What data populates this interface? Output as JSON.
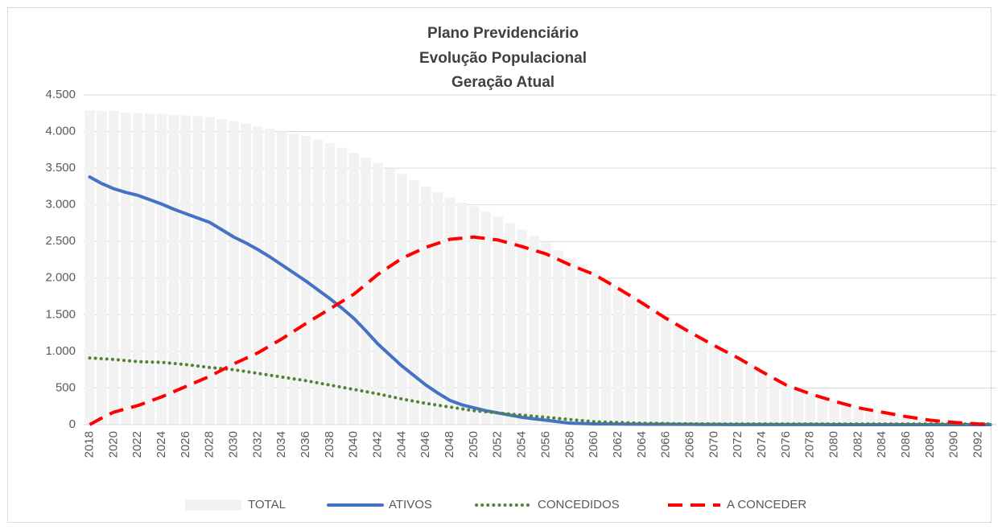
{
  "chart_data": {
    "type": "line",
    "title": [
      "Plano Previdenciário",
      "Evolução Populacional",
      "Geração Atual"
    ],
    "categories": [
      "2018",
      null,
      "2020",
      null,
      "2022",
      null,
      "2024",
      null,
      "2026",
      null,
      "2028",
      null,
      "2030",
      null,
      "2032",
      null,
      "2034",
      null,
      "2036",
      null,
      "2038",
      null,
      "2040",
      null,
      "2042",
      null,
      "2044",
      null,
      "2046",
      null,
      "2048",
      null,
      "2050",
      null,
      "2052",
      null,
      "2054",
      null,
      "2056",
      null,
      "2058",
      null,
      "2060",
      null,
      "2062",
      null,
      "2064",
      null,
      "2066",
      null,
      "2068",
      null,
      "2070",
      null,
      "2072",
      null,
      "2074",
      null,
      "2076",
      null,
      "2078",
      null,
      "2080",
      null,
      "2082",
      null,
      "2084",
      null,
      "2086",
      null,
      "2088",
      null,
      "2090",
      null,
      "2092",
      null
    ],
    "ylim": [
      0,
      4500
    ],
    "yticks": [
      0,
      500,
      {
        "value": 1000,
        "label": "1.000"
      },
      {
        "value": 1500,
        "label": "1.500"
      },
      {
        "value": 2000,
        "label": "2.000"
      },
      {
        "value": 2500,
        "label": "2.500"
      },
      {
        "value": 3000,
        "label": "3.000"
      },
      {
        "value": 3500,
        "label": "3.500"
      },
      {
        "value": 4000,
        "label": "4.000"
      },
      {
        "value": 4500,
        "label": "4.500"
      }
    ],
    "grid": true,
    "legend": "bottom",
    "series": [
      {
        "name": "TOTAL",
        "type": "bar",
        "color": "#f2f2f2",
        "values": [
          4290,
          4280,
          4280,
          4260,
          4250,
          4245,
          4240,
          4225,
          4220,
          4210,
          4200,
          4170,
          4140,
          4110,
          4070,
          4040,
          4000,
          3970,
          3940,
          3890,
          3840,
          3780,
          3710,
          3645,
          3570,
          3495,
          3420,
          3335,
          3250,
          3170,
          3100,
          3030,
          2980,
          2905,
          2840,
          2750,
          2660,
          2575,
          2490,
          2380,
          2270,
          2185,
          2100,
          1999,
          1898,
          1792,
          1686,
          1578,
          1470,
          1372,
          1276,
          1184,
          1093,
          1007,
          922,
          827,
          732,
          641,
          551,
          491,
          431,
          381,
          330,
          285,
          240,
          210,
          180,
          150,
          120,
          95,
          70,
          55,
          40,
          30,
          20,
          15
        ]
      },
      {
        "name": "ATIVOS",
        "type": "line",
        "dash": "solid",
        "color": "#4472c4",
        "values": [
          3380,
          3290,
          3220,
          3170,
          3130,
          3070,
          3010,
          2940,
          2880,
          2820,
          2760,
          2660,
          2560,
          2480,
          2390,
          2290,
          2180,
          2070,
          1960,
          1840,
          1720,
          1590,
          1450,
          1280,
          1100,
          950,
          800,
          670,
          540,
          430,
          330,
          270,
          230,
          190,
          160,
          130,
          100,
          80,
          60,
          40,
          20,
          15,
          10,
          9,
          8,
          7,
          6,
          5,
          5,
          4,
          4,
          3,
          3,
          2,
          2,
          2,
          2,
          1,
          1,
          1,
          1,
          1,
          0,
          0,
          0,
          0,
          0,
          0,
          0,
          0,
          0,
          0,
          0,
          0,
          0,
          0
        ]
      },
      {
        "name": "CONCEDIDOS",
        "type": "line",
        "dash": "dotted",
        "color": "#548235",
        "values": [
          910,
          900,
          890,
          875,
          860,
          855,
          850,
          835,
          820,
          800,
          780,
          765,
          750,
          725,
          700,
          675,
          650,
          625,
          600,
          570,
          540,
          510,
          480,
          450,
          420,
          385,
          350,
          320,
          290,
          265,
          240,
          215,
          190,
          175,
          160,
          145,
          130,
          115,
          100,
          85,
          70,
          55,
          40,
          35,
          30,
          25,
          20,
          18,
          15,
          13,
          12,
          11,
          10,
          10,
          10,
          10,
          10,
          10,
          10,
          10,
          10,
          10,
          10,
          10,
          10,
          10,
          10,
          10,
          10,
          10,
          10,
          10,
          10,
          10,
          10,
          10
        ]
      },
      {
        "name": "A CONCEDER",
        "type": "line",
        "dash": "dashed",
        "color": "#ff0000",
        "values": [
          0,
          90,
          170,
          215,
          260,
          320,
          380,
          450,
          520,
          590,
          660,
          745,
          830,
          905,
          980,
          1075,
          1170,
          1275,
          1380,
          1480,
          1580,
          1680,
          1780,
          1915,
          2050,
          2160,
          2270,
          2345,
          2420,
          2475,
          2530,
          2545,
          2560,
          2540,
          2520,
          2475,
          2430,
          2380,
          2330,
          2255,
          2180,
          2115,
          2050,
          1955,
          1860,
          1760,
          1660,
          1555,
          1450,
          1355,
          1260,
          1170,
          1080,
          995,
          910,
          815,
          720,
          630,
          540,
          480,
          420,
          370,
          320,
          275,
          230,
          200,
          170,
          140,
          110,
          85,
          60,
          45,
          30,
          20,
          10,
          5
        ]
      }
    ]
  }
}
